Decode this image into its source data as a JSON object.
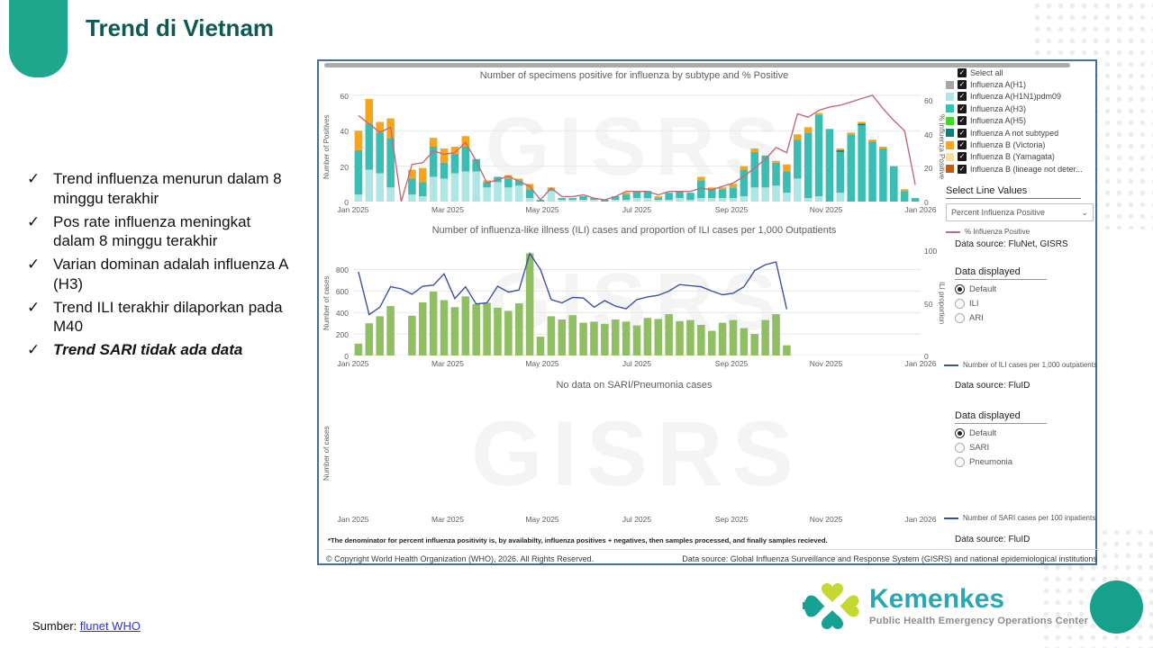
{
  "slide": {
    "title": "Trend di Vietnam",
    "bullet_glyph": "✓",
    "bullets": [
      {
        "text": "Trend influenza menurun dalam 8 minggu terakhir",
        "emphasis": false
      },
      {
        "text": "Pos rate influenza meningkat dalam 8 minggu terakhir",
        "emphasis": false
      },
      {
        "text": "Varian dominan adalah influenza A (H3)",
        "emphasis": false
      },
      {
        "text": "Trend ILI terakhir dilaporkan pada M40",
        "emphasis": false
      },
      {
        "text": "Trend SARI tidak ada data",
        "emphasis": true
      }
    ],
    "source_label": "Sumber:",
    "source_link": "flunet WHO"
  },
  "logo": {
    "name": "Kemenkes",
    "subtitle": "Public Health Emergency Operations Center"
  },
  "icons": {
    "check": "✓",
    "chevron_down": "⌄"
  },
  "dashboard": {
    "watermark": "GISRS",
    "legend": {
      "select_all": "Select all",
      "items": [
        {
          "label": "Influenza A(H1)",
          "color": "#A6A6A6"
        },
        {
          "label": "Influenza A(H1N1)pdm09",
          "color": "#AEE6E3"
        },
        {
          "label": "Influenza A(H3)",
          "color": "#3ABDB3"
        },
        {
          "label": "Influenza A(H5)",
          "color": "#44D62C"
        },
        {
          "label": "Influenza A not subtyped",
          "color": "#0D7E80"
        },
        {
          "label": "Influenza B (Victoria)",
          "color": "#F8A51B"
        },
        {
          "label": "Influenza B (Yamagata)",
          "color": "#F7DCAD"
        },
        {
          "label": "Influenza B (lineage not deter...",
          "color": "#C05C0F"
        }
      ]
    },
    "select_line_values": {
      "header": "Select Line Values",
      "selected": "Percent Influenza Positive"
    },
    "panel1": {
      "line_legend": "% Influenza Positive",
      "dash_color": "#C36A78",
      "data_source": "Data source: FluNet, GISRS",
      "data_displayed": "Data displayed",
      "options": [
        "Default",
        "ILI",
        "ARI"
      ],
      "selected": "Default"
    },
    "panel2": {
      "line_legend": "Number of ILI cases per 1,000 outpatients",
      "dash_color": "#3C51A3",
      "data_source": "Data source: FluID",
      "data_displayed": "Data displayed",
      "options": [
        "Default",
        "SARI",
        "Pneumonia"
      ],
      "selected": "Default"
    },
    "panel3": {
      "line_legend": "Number of SARI cases per 100 inpatients",
      "dash_color": "#3C51A3",
      "data_source": "Data source: FluID"
    },
    "footnote": "*The denominator for percent influenza positivity is, by availabilty, influenza positives + negatives, then samples processed, and finally samples recieved.",
    "copyright": "© Copyright World Health Organization (WHO), 2026. All Rights Reserved.",
    "datasource_footer": "Data source: Global Influenza Surveillance and Response System (GISRS) and national epidemiological institutions"
  },
  "chart_data": [
    {
      "type": "bar",
      "title": "Number of specimens positive for influenza by subtype and % Positive",
      "ylabel_left": "Number of Positives",
      "ylabel_right": "% Influenza Positive",
      "left_ticks": [
        0,
        20,
        40,
        60
      ],
      "left_max": 62,
      "right_ticks": [
        0,
        20,
        40,
        60
      ],
      "right_max": 65,
      "n_slots": 53,
      "x_tick_labels": [
        "Jan 2025",
        "Mar 2025",
        "May 2025",
        "Jul 2025",
        "Sep 2025",
        "Nov 2025",
        "Jan 2026"
      ],
      "series": [
        {
          "name": "Influenza A(H1N1)pdm09",
          "color": "#AEE6E3",
          "values": [
            4,
            18,
            16,
            8,
            0,
            4,
            3,
            14,
            13,
            16,
            17,
            17,
            8,
            11,
            8,
            9,
            2,
            0,
            6,
            1,
            1,
            1,
            1,
            0,
            1,
            1,
            2,
            2,
            1,
            1,
            2,
            1,
            2,
            2,
            2,
            2,
            3,
            8,
            8,
            9,
            5,
            13,
            2,
            3,
            0,
            5,
            0,
            0,
            0,
            0,
            0,
            0,
            0
          ]
        },
        {
          "name": "Influenza A(H3)",
          "color": "#3ABDB3",
          "values": [
            25,
            26,
            23,
            28,
            0,
            9,
            8,
            17,
            9,
            11,
            14,
            7,
            3,
            3,
            5,
            3,
            5,
            1,
            1,
            1,
            1,
            2,
            1,
            1,
            2,
            3,
            4,
            4,
            1,
            4,
            4,
            4,
            10,
            5,
            5,
            6,
            15,
            20,
            18,
            13,
            12,
            22,
            37,
            46,
            41,
            23,
            38,
            43,
            34,
            30,
            20,
            6,
            2
          ]
        },
        {
          "name": "Influenza A not subtyped",
          "color": "#0D7E80",
          "values": [
            0,
            0,
            0,
            0,
            0,
            0,
            0,
            0,
            0,
            0,
            0,
            0,
            0,
            0,
            0,
            0,
            0,
            0,
            0,
            0,
            0,
            0,
            0,
            0,
            0,
            0,
            0,
            0,
            0,
            0,
            0,
            0,
            0,
            0,
            0,
            0,
            0,
            0,
            0,
            0,
            0,
            0,
            0,
            0,
            0,
            1,
            0,
            1,
            0,
            0,
            0,
            0,
            0
          ]
        },
        {
          "name": "Influenza B (Victoria)",
          "color": "#F8A51B",
          "values": [
            11,
            14,
            6,
            11,
            0,
            5,
            8,
            5,
            8,
            4,
            6,
            0,
            1,
            0,
            2,
            1,
            3,
            0,
            1,
            0,
            0,
            0,
            0,
            0,
            0,
            1,
            0,
            0,
            1,
            0,
            0,
            0,
            2,
            1,
            1,
            2,
            2,
            2,
            0,
            1,
            4,
            3,
            3,
            1,
            0,
            1,
            1,
            1,
            1,
            1,
            0,
            1,
            0
          ]
        }
      ],
      "line": {
        "name": "% Influenza Positive",
        "color": "#C36A78",
        "axis": "right",
        "values": [
          51,
          46,
          41,
          44,
          0,
          22,
          23,
          30,
          28,
          29,
          35,
          24,
          11,
          13,
          15,
          12,
          9,
          1,
          8,
          3,
          3,
          4,
          2,
          1,
          3,
          6,
          6,
          6,
          4,
          6,
          6,
          6,
          8,
          7,
          9,
          11,
          15,
          20,
          25,
          32,
          29,
          52,
          50,
          54,
          56,
          57,
          59,
          61,
          63,
          55,
          48,
          42,
          10
        ]
      }
    },
    {
      "type": "bar",
      "title": "Number of influenza-like illness (ILI) cases and proportion of ILI cases per 1,000 Outpatients",
      "ylabel_left": "Number of cases",
      "ylabel_right": "ILI proportion",
      "left_ticks": [
        0,
        200,
        400,
        600,
        800
      ],
      "left_max": 980,
      "right_ticks": [
        0,
        50,
        100
      ],
      "right_max": 100,
      "n_slots": 53,
      "x_tick_labels": [
        "Jan 2025",
        "Mar 2025",
        "May 2025",
        "Jul 2025",
        "Sep 2025",
        "Nov 2025",
        "Jan 2026"
      ],
      "bars": {
        "name": "ILI cases",
        "color": "#8FBE63",
        "values": [
          110,
          300,
          365,
          460,
          0,
          370,
          495,
          595,
          515,
          450,
          550,
          480,
          490,
          445,
          415,
          485,
          950,
          175,
          365,
          335,
          375,
          305,
          315,
          295,
          335,
          315,
          280,
          350,
          340,
          385,
          320,
          330,
          285,
          230,
          305,
          330,
          255,
          200,
          330,
          385,
          95
        ]
      },
      "line": {
        "name": "Number of ILI cases per 1,000 outpatients",
        "color": "#3C51A3",
        "axis": "left",
        "values": [
          780,
          380,
          450,
          640,
          620,
          570,
          645,
          655,
          760,
          530,
          640,
          480,
          490,
          645,
          590,
          610,
          950,
          800,
          520,
          490,
          540,
          535,
          450,
          510,
          460,
          435,
          520,
          545,
          560,
          600,
          660,
          650,
          640,
          600,
          565,
          580,
          640,
          790,
          845,
          870,
          430
        ]
      }
    },
    {
      "type": "bar",
      "title": "No data on SARI/Pneumonia cases",
      "ylabel_left": "Number of cases",
      "left_ticks": [],
      "left_max": 1,
      "n_slots": 53,
      "x_tick_labels": [
        "Jan 2025",
        "Mar 2025",
        "May 2025",
        "Jul 2025",
        "Sep 2025",
        "Nov 2025",
        "Jan 2026"
      ]
    }
  ]
}
